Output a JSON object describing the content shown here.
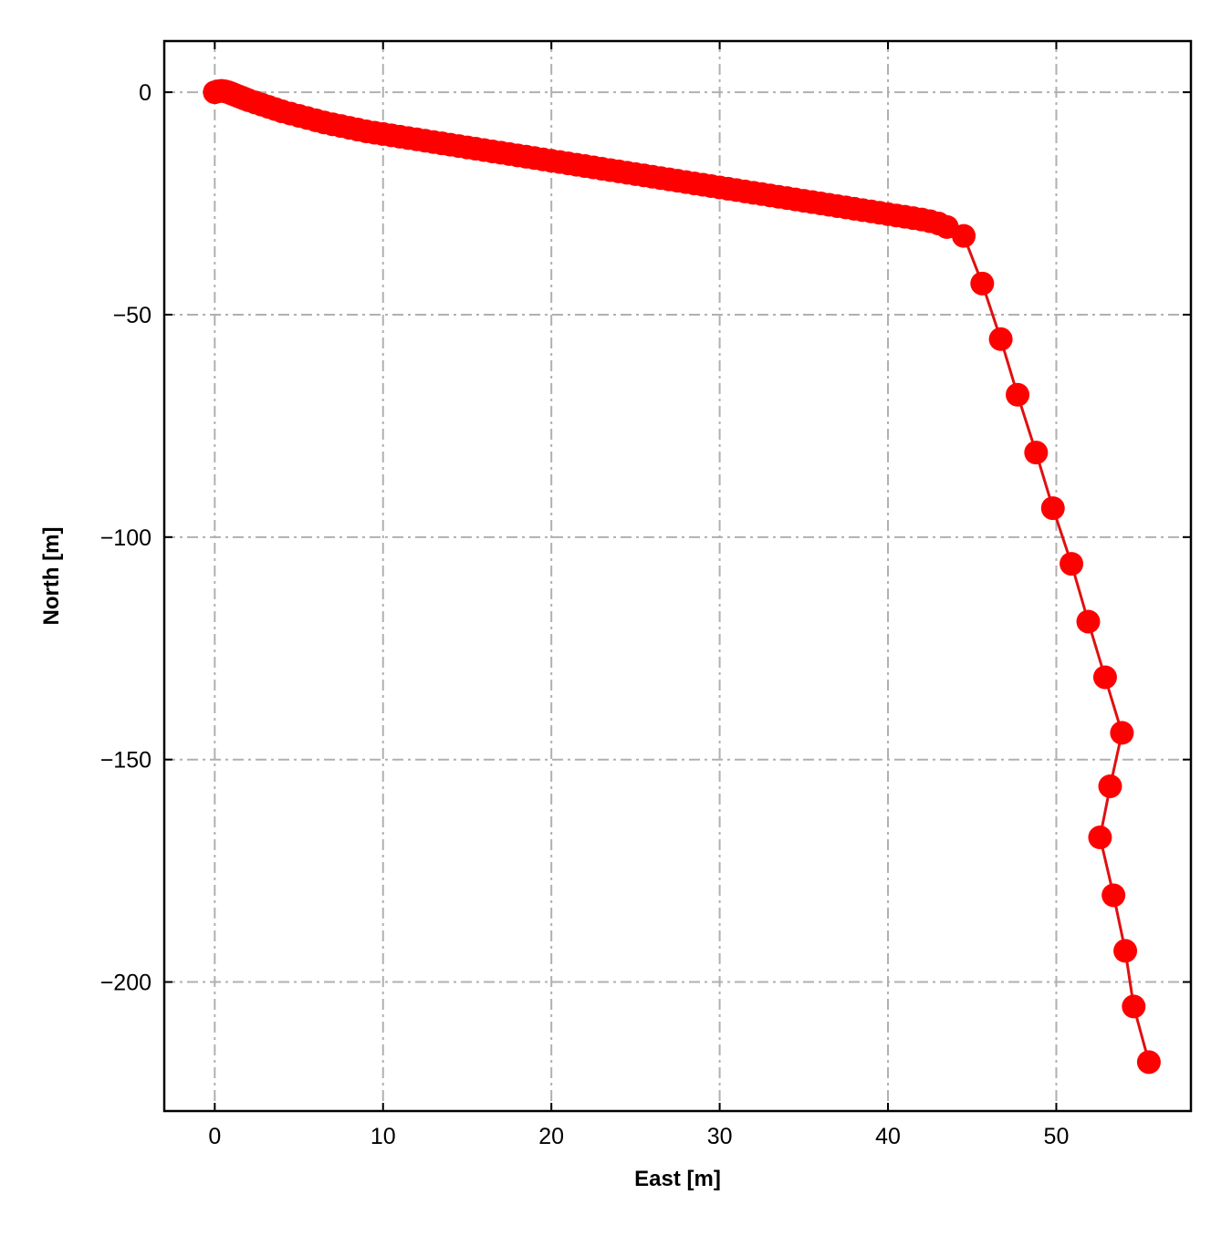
{
  "chart_data": {
    "type": "line",
    "title": "",
    "xlabel": "East [m]",
    "ylabel": "North [m]",
    "xlim": [
      -3,
      58
    ],
    "ylim": [
      -229,
      11.5
    ],
    "xticks": [
      0,
      10,
      20,
      30,
      40,
      50
    ],
    "yticks": [
      0,
      -50,
      -100,
      -150,
      -200
    ],
    "xtick_labels": [
      "0",
      "10",
      "20",
      "30",
      "40",
      "50"
    ],
    "ytick_labels": [
      "0",
      "−50",
      "−100",
      "−150",
      "−200"
    ],
    "grid": true,
    "grid_style": "dash-dot",
    "series": [
      {
        "color": "#ff0000",
        "line_color": "#e01010",
        "marker": "circle",
        "x": [
          0,
          0.2,
          0.4,
          0.6,
          0.8,
          1,
          1.2,
          1.4,
          1.6,
          1.8,
          2,
          2.4,
          2.8,
          3.2,
          3.6,
          4,
          4.5,
          5,
          5.5,
          6,
          6.5,
          7,
          7.5,
          8,
          8.5,
          9,
          9.5,
          10,
          10.5,
          11,
          11.5,
          12,
          12.5,
          13,
          13.5,
          14,
          14.5,
          15,
          15.5,
          16,
          16.5,
          17,
          17.5,
          18,
          18.5,
          19,
          19.5,
          20,
          20.5,
          21,
          21.5,
          22,
          22.5,
          23,
          23.5,
          24,
          24.5,
          25,
          25.5,
          26,
          26.5,
          27,
          27.5,
          28,
          28.5,
          29,
          29.5,
          30,
          30.5,
          31,
          31.5,
          32,
          32.5,
          33,
          33.5,
          34,
          34.5,
          35,
          35.5,
          36,
          36.5,
          37,
          37.5,
          38,
          38.5,
          39,
          39.5,
          40,
          40.5,
          41,
          41.5,
          42,
          42.5,
          43,
          43.5,
          44.5,
          45.6,
          46.7,
          47.7,
          48.8,
          49.8,
          50.9,
          51.9,
          52.9,
          53.9,
          53.2,
          52.6,
          53.4,
          54.1,
          54.6,
          55.5
        ],
        "y": [
          0,
          0.2,
          0.3,
          0.2,
          0,
          -0.3,
          -0.6,
          -0.9,
          -1.2,
          -1.5,
          -1.8,
          -2.3,
          -2.8,
          -3.3,
          -3.8,
          -4.3,
          -4.8,
          -5.3,
          -5.8,
          -6.3,
          -6.8,
          -7.2,
          -7.6,
          -8,
          -8.4,
          -8.8,
          -9.1,
          -9.4,
          -9.7,
          -10,
          -10.3,
          -10.6,
          -10.9,
          -11.2,
          -11.5,
          -11.8,
          -12.1,
          -12.4,
          -12.7,
          -13,
          -13.3,
          -13.6,
          -13.9,
          -14.2,
          -14.5,
          -14.8,
          -15.1,
          -15.4,
          -15.7,
          -16,
          -16.3,
          -16.6,
          -16.9,
          -17.2,
          -17.5,
          -17.8,
          -18.1,
          -18.4,
          -18.7,
          -19,
          -19.3,
          -19.6,
          -19.9,
          -20.2,
          -20.5,
          -20.8,
          -21.1,
          -21.4,
          -21.7,
          -22,
          -22.3,
          -22.6,
          -22.9,
          -23.2,
          -23.5,
          -23.8,
          -24.1,
          -24.4,
          -24.7,
          -25,
          -25.3,
          -25.6,
          -25.9,
          -26.2,
          -26.5,
          -26.8,
          -27.1,
          -27.4,
          -27.7,
          -28,
          -28.3,
          -28.6,
          -29,
          -29.5,
          -30.3,
          -32.3,
          -43,
          -55.5,
          -68,
          -81,
          -93.5,
          -106,
          -119,
          -131.5,
          -144,
          -156,
          -167.5,
          -180.5,
          -193,
          -205.5,
          -218
        ]
      }
    ]
  }
}
